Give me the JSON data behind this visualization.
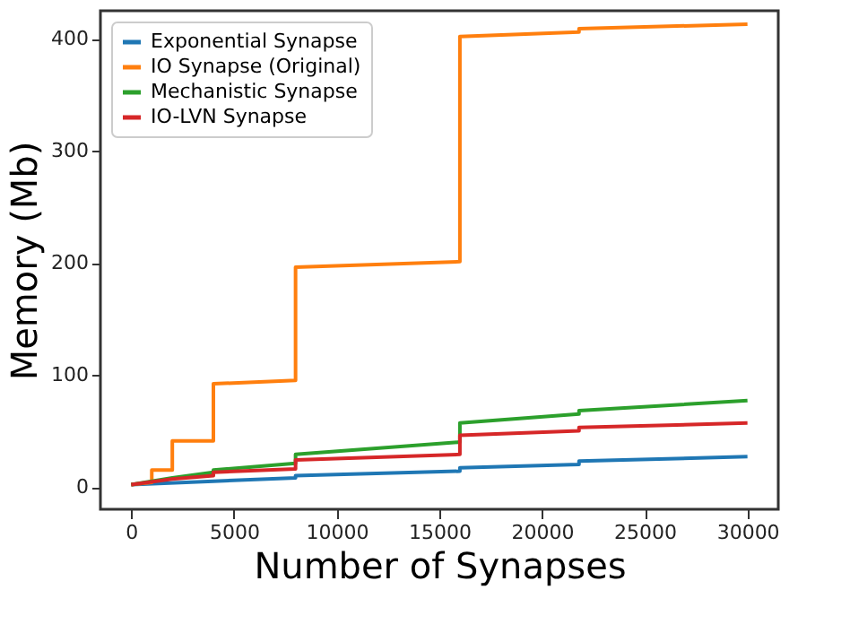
{
  "chart_data": {
    "type": "line",
    "xlabel": "Number of Synapses",
    "ylabel": "Memory (Mb)",
    "xlim": [
      -1500,
      31500
    ],
    "ylim": [
      -20,
      425
    ],
    "xticks": [
      0,
      5000,
      10000,
      15000,
      20000,
      25000,
      30000
    ],
    "yticks": [
      0,
      100,
      200,
      300,
      400
    ],
    "grid": false,
    "legend": "top left",
    "series": [
      {
        "name": "Exponential Synapse",
        "color": "#1f77b4",
        "x": [
          0,
          4000,
          8000,
          8000,
          16000,
          16000,
          21800,
          21800,
          30000
        ],
        "values": [
          2,
          5,
          8,
          10,
          14,
          17,
          20,
          23,
          27
        ]
      },
      {
        "name": "IO Synapse (Original)",
        "color": "#ff7f0e",
        "x": [
          0,
          1000,
          1000,
          2000,
          2000,
          4000,
          4000,
          8000,
          8000,
          16000,
          16000,
          21800,
          21800,
          30000
        ],
        "values": [
          2,
          4,
          15,
          15,
          41,
          41,
          92,
          95,
          196,
          201,
          402,
          406,
          409,
          413
        ]
      },
      {
        "name": "Mechanistic Synapse",
        "color": "#2ca02c",
        "x": [
          0,
          2000,
          4000,
          4000,
          8000,
          8000,
          16000,
          16000,
          21800,
          21800,
          30000
        ],
        "values": [
          2,
          8,
          13,
          15,
          21,
          29,
          40,
          57,
          65,
          68,
          77
        ]
      },
      {
        "name": "IO-LVN Synapse",
        "color": "#d62728",
        "x": [
          0,
          2000,
          4000,
          4000,
          8000,
          8000,
          16000,
          16000,
          21800,
          21800,
          30000
        ],
        "values": [
          2,
          7,
          10,
          13,
          16,
          24,
          29,
          46,
          50,
          53,
          57
        ]
      }
    ]
  }
}
